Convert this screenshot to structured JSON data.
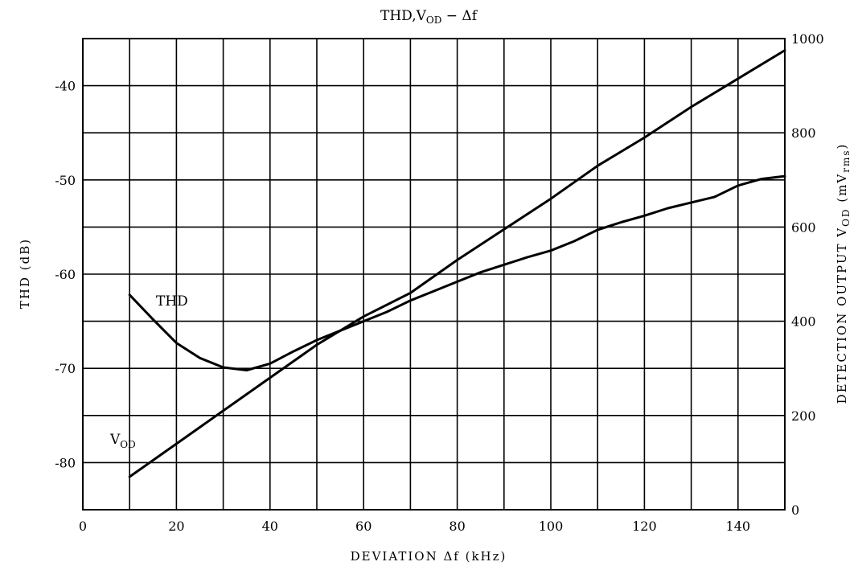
{
  "chart_data": {
    "type": "line",
    "title_prefix": "THD,V",
    "title_sub": "OD",
    "title_suffix": " − Δf",
    "xlabel": "DEVIATION Δf (kHz)",
    "ylabel_left": "THD (dB)",
    "ylabel_right_prefix": "DETECTION OUTPUT V",
    "ylabel_right_sub1": "OD",
    "ylabel_right_mid": " (mV",
    "ylabel_right_sub2": "rms",
    "ylabel_right_suffix": ")",
    "xlim": [
      0,
      150
    ],
    "ylim_left": [
      -85,
      -35
    ],
    "ylim_right": [
      0,
      1000
    ],
    "grid": true,
    "x_ticks": [
      "0",
      "20",
      "40",
      "60",
      "80",
      "100",
      "120",
      "140"
    ],
    "y_left_ticks": [
      "-40",
      "-50",
      "-60",
      "-70",
      "-80"
    ],
    "y_right_ticks": [
      "1000",
      "800",
      "600",
      "400",
      "200",
      "0"
    ],
    "series": [
      {
        "name": "THD",
        "axis": "left",
        "x": [
          10,
          15,
          20,
          25,
          30,
          35,
          40,
          45,
          50,
          55,
          60,
          65,
          70,
          75,
          80,
          85,
          90,
          95,
          100,
          105,
          110,
          115,
          120,
          125,
          130,
          135,
          140,
          145,
          150
        ],
        "y": [
          -62.2,
          -64.8,
          -67.3,
          -68.9,
          -69.9,
          -70.2,
          -69.5,
          -68.2,
          -67,
          -66,
          -65,
          -64,
          -62.8,
          -61.8,
          -60.8,
          -59.8,
          -59,
          -58.2,
          -57.5,
          -56.5,
          -55.3,
          -54.5,
          -53.8,
          -53,
          -52.4,
          -51.8,
          -50.6,
          -49.9,
          -49.6
        ]
      },
      {
        "name_prefix": "V",
        "name_sub": "OD",
        "axis": "right",
        "x": [
          10,
          15,
          20,
          30,
          40,
          50,
          60,
          70,
          80,
          90,
          100,
          110,
          120,
          130,
          140,
          150
        ],
        "y": [
          70,
          105,
          140,
          210,
          280,
          350,
          410,
          460,
          530,
          595,
          660,
          730,
          790,
          855,
          915,
          975
        ]
      }
    ]
  }
}
